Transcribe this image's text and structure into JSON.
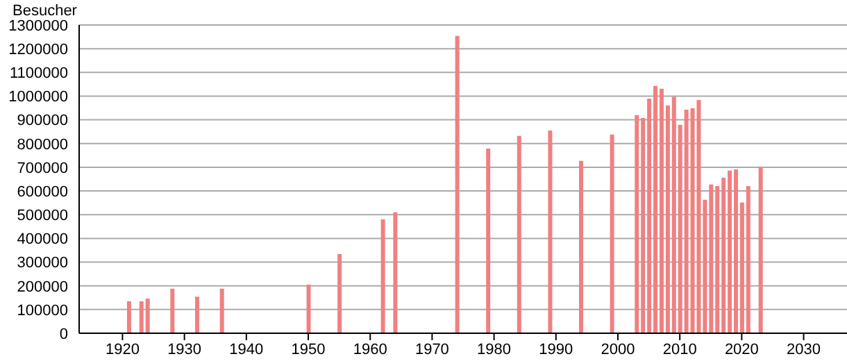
{
  "chart_data": {
    "type": "bar",
    "ylabel": "Besucher",
    "x": [
      1921,
      1923,
      1924,
      1928,
      1932,
      1936,
      1950,
      1955,
      1962,
      1964,
      1974,
      1979,
      1984,
      1989,
      1994,
      1999,
      2003,
      2004,
      2005,
      2006,
      2007,
      2008,
      2009,
      2010,
      2011,
      2012,
      2013,
      2014,
      2015,
      2016,
      2017,
      2018,
      2019,
      2020,
      2021,
      2023
    ],
    "values": [
      135000,
      135000,
      146000,
      188000,
      154000,
      188000,
      205000,
      334000,
      480000,
      510000,
      1254000,
      779000,
      832000,
      855000,
      727000,
      838000,
      920000,
      908000,
      990000,
      1043000,
      1031000,
      961000,
      998000,
      879000,
      943000,
      949000,
      984000,
      563000,
      627000,
      621000,
      656000,
      686000,
      691000,
      551000,
      621000,
      703000
    ],
    "color": "#f08080",
    "xlim": [
      1913,
      2037
    ],
    "xticks": [
      1920,
      1930,
      1940,
      1950,
      1960,
      1970,
      1980,
      1990,
      2000,
      2010,
      2020,
      2030
    ],
    "ylim": [
      0,
      1300000
    ],
    "yticks": [
      0,
      100000,
      200000,
      300000,
      400000,
      500000,
      600000,
      700000,
      800000,
      900000,
      1000000,
      1100000,
      1200000,
      1300000
    ],
    "grid": "y"
  }
}
